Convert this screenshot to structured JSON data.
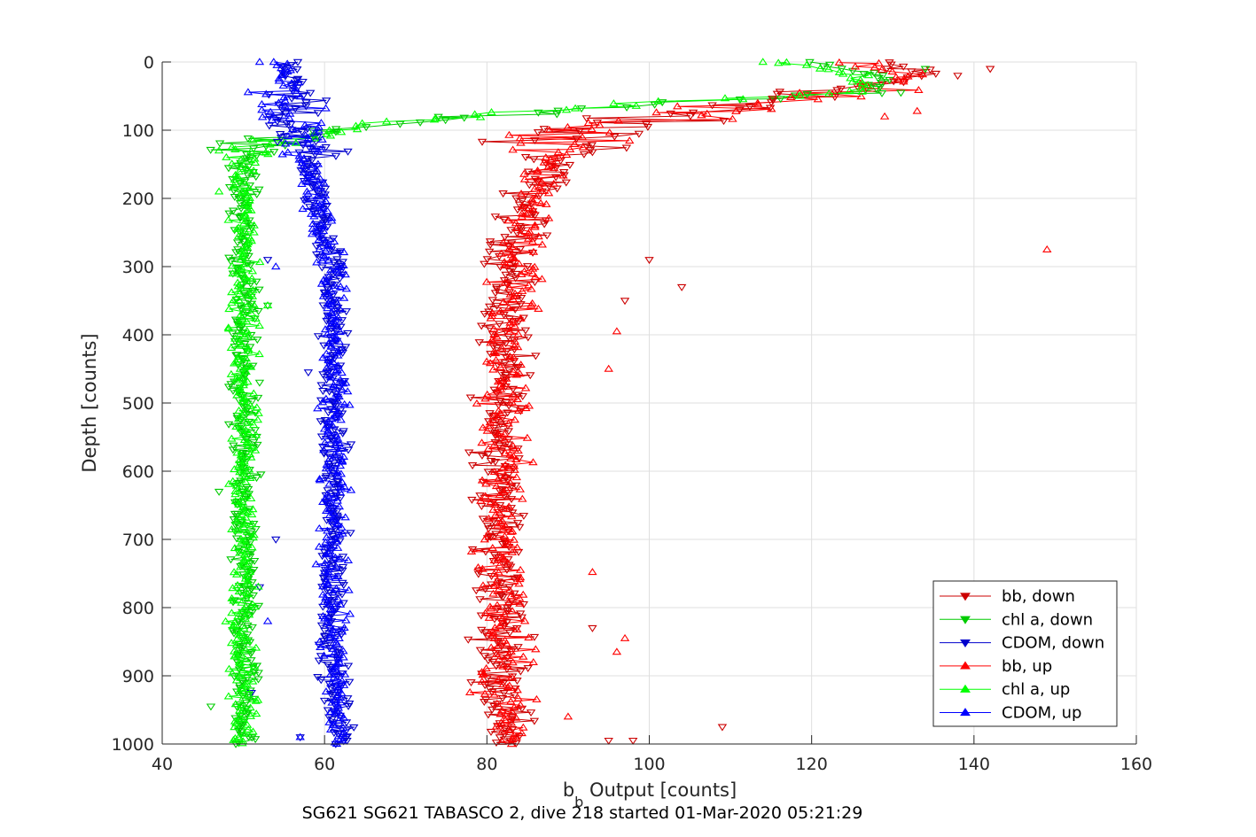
{
  "chart_data": {
    "type": "scatter",
    "title": "SG621 SG621 TABASCO 2, dive 218 started 01-Mar-2020 05:21:29",
    "xlabel_main": "b",
    "xlabel_sub": "b",
    "xlabel_rest": " Output [counts]",
    "ylabel": "Depth [counts]",
    "xlim": [
      40,
      160
    ],
    "ylim": [
      0,
      1000
    ],
    "y_reversed": true,
    "grid": true,
    "legend_position": "bottom-right",
    "xticks": [
      40,
      60,
      80,
      100,
      120,
      140,
      160
    ],
    "yticks": [
      0,
      100,
      200,
      300,
      400,
      500,
      600,
      700,
      800,
      900,
      1000
    ],
    "xtick_labels": [
      "40",
      "60",
      "80",
      "100",
      "120",
      "140",
      "160"
    ],
    "ytick_labels": [
      "0",
      "100",
      "200",
      "300",
      "400",
      "500",
      "600",
      "700",
      "800",
      "900",
      "1000"
    ],
    "series": [
      {
        "name": "bb, down",
        "color": "#cc0000",
        "marker": "triangle-down",
        "profile": [
          [
            0,
            128
          ],
          [
            20,
            134
          ],
          [
            50,
            120
          ],
          [
            70,
            105
          ],
          [
            100,
            92
          ],
          [
            150,
            88
          ],
          [
            200,
            85
          ],
          [
            300,
            83
          ],
          [
            400,
            82
          ],
          [
            500,
            82
          ],
          [
            600,
            82
          ],
          [
            700,
            81
          ],
          [
            800,
            82
          ],
          [
            900,
            82
          ],
          [
            1000,
            83
          ]
        ],
        "spread": 5,
        "outliers": [
          [
            100,
            290
          ],
          [
            104,
            330
          ],
          [
            109,
            975
          ],
          [
            97,
            350
          ],
          [
            93,
            830
          ],
          [
            98,
            995
          ],
          [
            95,
            995
          ],
          [
            142,
            10
          ],
          [
            138,
            20
          ]
        ]
      },
      {
        "name": "chl a, down",
        "color": "#00cc00",
        "marker": "triangle-down",
        "profile": [
          [
            0,
            120
          ],
          [
            20,
            128
          ],
          [
            45,
            128
          ],
          [
            60,
            100
          ],
          [
            75,
            85
          ],
          [
            90,
            70
          ],
          [
            100,
            62
          ],
          [
            120,
            52
          ],
          [
            150,
            50
          ],
          [
            200,
            50
          ],
          [
            300,
            50
          ],
          [
            500,
            50
          ],
          [
            700,
            50
          ],
          [
            900,
            50
          ],
          [
            1000,
            50
          ]
        ],
        "spread": 2.5,
        "outliers": [
          [
            46,
            945
          ],
          [
            47,
            630
          ],
          [
            53,
            357
          ],
          [
            52,
            470
          ],
          [
            134,
            10
          ],
          [
            131,
            45
          ]
        ]
      },
      {
        "name": "CDOM, down",
        "color": "#0000cc",
        "marker": "triangle-down",
        "profile": [
          [
            0,
            55
          ],
          [
            50,
            56
          ],
          [
            100,
            57
          ],
          [
            150,
            58
          ],
          [
            200,
            59
          ],
          [
            300,
            61
          ],
          [
            400,
            61
          ],
          [
            500,
            61
          ],
          [
            600,
            61
          ],
          [
            700,
            61
          ],
          [
            800,
            61
          ],
          [
            900,
            61
          ],
          [
            1000,
            62
          ]
        ],
        "spread": 2.6,
        "outliers": [
          [
            53,
            290
          ],
          [
            54,
            700
          ],
          [
            51,
            925
          ],
          [
            52,
            770
          ],
          [
            57,
            990
          ],
          [
            58,
            455
          ]
        ]
      },
      {
        "name": "bb, up",
        "color": "#ff0000",
        "marker": "triangle-up",
        "profile": [
          [
            0,
            126
          ],
          [
            20,
            133
          ],
          [
            50,
            122
          ],
          [
            70,
            108
          ],
          [
            100,
            93
          ],
          [
            150,
            88
          ],
          [
            200,
            86
          ],
          [
            300,
            84
          ],
          [
            400,
            82
          ],
          [
            500,
            82
          ],
          [
            600,
            82
          ],
          [
            700,
            82
          ],
          [
            800,
            82
          ],
          [
            900,
            82
          ],
          [
            1000,
            83
          ]
        ],
        "spread": 5,
        "outliers": [
          [
            149,
            275
          ],
          [
            133,
            72
          ],
          [
            129,
            80
          ],
          [
            96,
            395
          ],
          [
            95,
            450
          ],
          [
            93,
            748
          ],
          [
            97,
            845
          ],
          [
            96,
            865
          ],
          [
            90,
            960
          ]
        ]
      },
      {
        "name": "chl a, up",
        "color": "#00ff00",
        "marker": "triangle-up",
        "profile": [
          [
            0,
            116
          ],
          [
            20,
            126
          ],
          [
            45,
            126
          ],
          [
            60,
            100
          ],
          [
            75,
            84
          ],
          [
            90,
            68
          ],
          [
            100,
            62
          ],
          [
            120,
            52
          ],
          [
            150,
            50
          ],
          [
            200,
            50
          ],
          [
            300,
            50
          ],
          [
            500,
            50
          ],
          [
            700,
            50
          ],
          [
            900,
            50
          ],
          [
            1000,
            50
          ]
        ],
        "spread": 2.5,
        "outliers": [
          [
            47,
            190
          ],
          [
            53,
            357
          ],
          [
            47,
            130
          ],
          [
            114,
            0
          ]
        ]
      },
      {
        "name": "CDOM, up",
        "color": "#0000ff",
        "marker": "triangle-up",
        "profile": [
          [
            0,
            55
          ],
          [
            50,
            56
          ],
          [
            100,
            57
          ],
          [
            150,
            58
          ],
          [
            200,
            59
          ],
          [
            300,
            61
          ],
          [
            400,
            61
          ],
          [
            500,
            61
          ],
          [
            600,
            61
          ],
          [
            700,
            61
          ],
          [
            800,
            61
          ],
          [
            900,
            61
          ],
          [
            1000,
            62
          ]
        ],
        "spread": 2.6,
        "outliers": [
          [
            52,
            0
          ],
          [
            53,
            820
          ],
          [
            57,
            990
          ],
          [
            54,
            300
          ]
        ]
      }
    ]
  }
}
